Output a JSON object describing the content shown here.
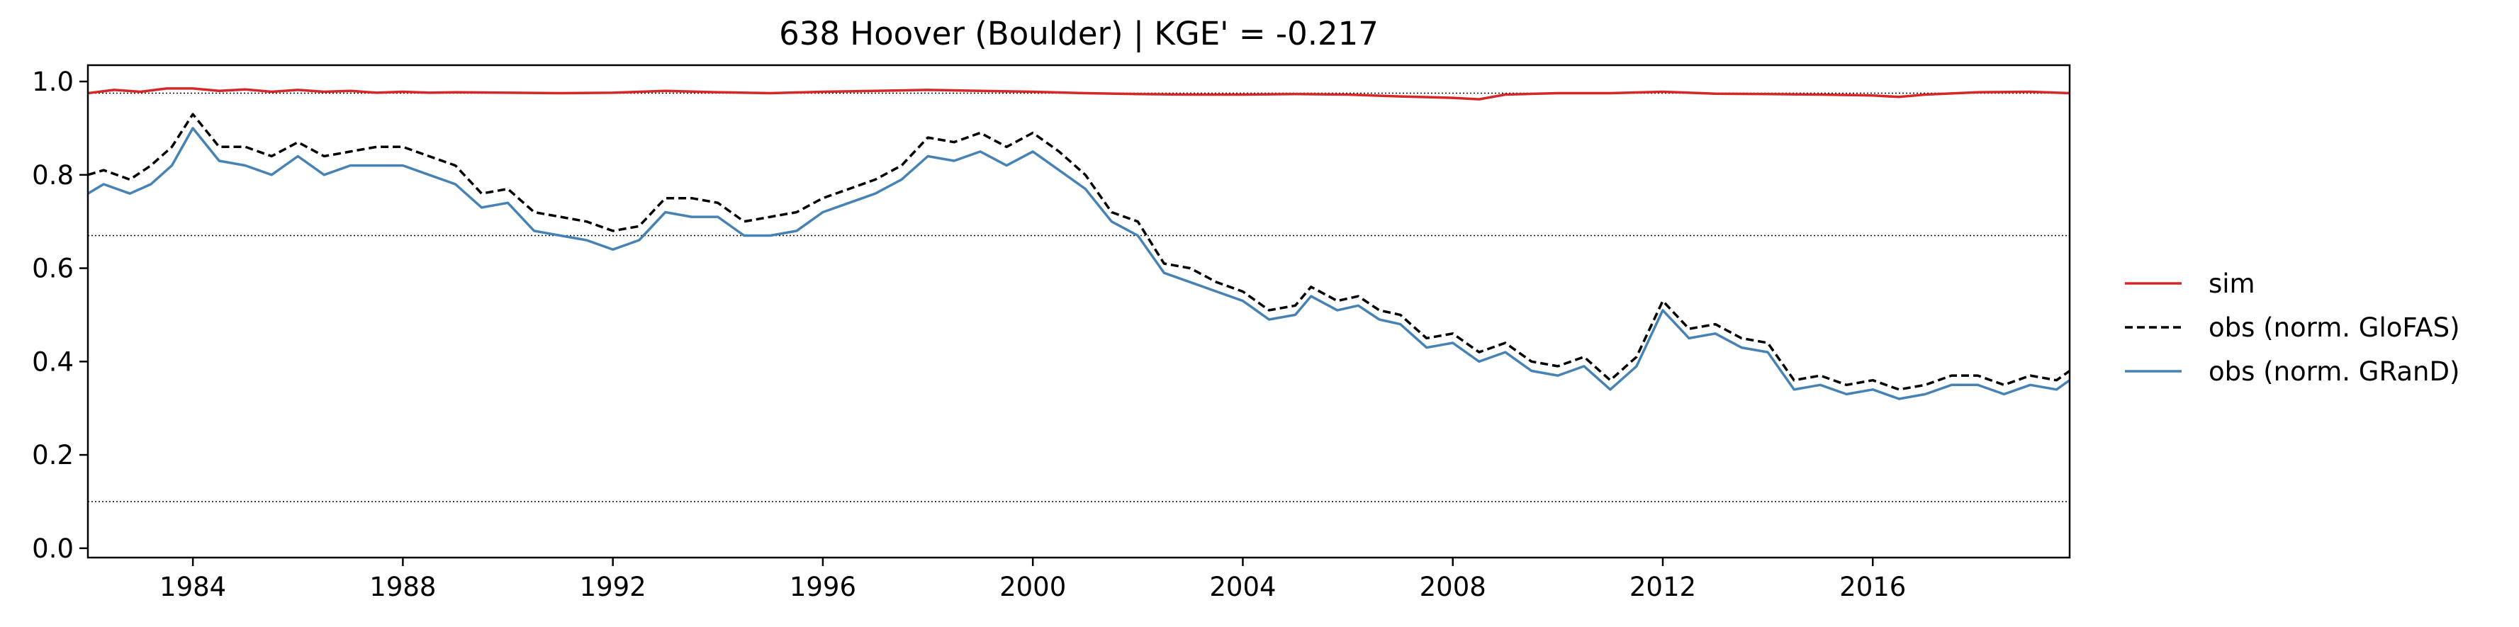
{
  "chart_data": {
    "type": "line",
    "title": "638  Hoover (Boulder) | KGE' = -0.217",
    "xlabel": "",
    "ylabel": "",
    "xlim": [
      1982.0,
      2019.75
    ],
    "ylim": [
      -0.02,
      1.035
    ],
    "x_ticks": [
      1984,
      1988,
      1992,
      1996,
      2000,
      2004,
      2008,
      2012,
      2016
    ],
    "x_tick_labels": [
      "1984",
      "1988",
      "1992",
      "1996",
      "2000",
      "2004",
      "2008",
      "2012",
      "2016"
    ],
    "y_ticks": [
      0.0,
      0.2,
      0.4,
      0.6,
      0.8,
      1.0
    ],
    "y_tick_labels": [
      "0.0",
      "0.2",
      "0.4",
      "0.6",
      "0.8",
      "1.0"
    ],
    "grid": false,
    "legend_placement": "right, outside",
    "reference_lines": [
      {
        "y": 0.975,
        "style": "dotted",
        "color": "#000000"
      },
      {
        "y": 0.67,
        "style": "dotted",
        "color": "#000000"
      },
      {
        "y": 0.1,
        "style": "dotted",
        "color": "#000000"
      }
    ],
    "series": [
      {
        "name": "sim",
        "color": "#d62728",
        "style": "solid",
        "x": [
          1982.0,
          1982.5,
          1983.0,
          1983.5,
          1984.0,
          1984.5,
          1985.0,
          1985.5,
          1986.0,
          1986.5,
          1987.0,
          1987.5,
          1988.0,
          1988.5,
          1989.0,
          1990.0,
          1991.0,
          1992.0,
          1993.0,
          1994.0,
          1995.0,
          1996.0,
          1997.0,
          1998.0,
          1999.0,
          2000.0,
          2001.0,
          2002.0,
          2003.0,
          2004.0,
          2005.0,
          2006.0,
          2007.0,
          2008.0,
          2008.5,
          2009.0,
          2010.0,
          2011.0,
          2012.0,
          2013.0,
          2014.0,
          2015.0,
          2016.0,
          2016.5,
          2017.0,
          2018.0,
          2019.0,
          2019.75
        ],
        "values": [
          0.975,
          0.982,
          0.978,
          0.985,
          0.985,
          0.98,
          0.983,
          0.978,
          0.982,
          0.978,
          0.98,
          0.976,
          0.978,
          0.976,
          0.977,
          0.976,
          0.975,
          0.976,
          0.98,
          0.977,
          0.975,
          0.978,
          0.98,
          0.982,
          0.98,
          0.978,
          0.975,
          0.973,
          0.972,
          0.972,
          0.973,
          0.972,
          0.968,
          0.965,
          0.962,
          0.972,
          0.975,
          0.975,
          0.978,
          0.974,
          0.973,
          0.972,
          0.97,
          0.967,
          0.972,
          0.977,
          0.978,
          0.975
        ]
      },
      {
        "name": "obs (norm. GloFAS)",
        "color": "#000000",
        "style": "dashed",
        "x": [
          1982.0,
          1982.3,
          1982.8,
          1983.2,
          1983.6,
          1984.0,
          1984.5,
          1985.0,
          1985.5,
          1986.0,
          1986.5,
          1987.0,
          1987.5,
          1988.0,
          1988.5,
          1989.0,
          1989.5,
          1990.0,
          1990.5,
          1991.0,
          1991.5,
          1992.0,
          1992.5,
          1993.0,
          1993.5,
          1994.0,
          1994.5,
          1995.0,
          1995.5,
          1996.0,
          1996.5,
          1997.0,
          1997.5,
          1998.0,
          1998.5,
          1999.0,
          1999.5,
          2000.0,
          2000.5,
          2001.0,
          2001.5,
          2002.0,
          2002.5,
          2003.0,
          2003.5,
          2004.0,
          2004.5,
          2005.0,
          2005.3,
          2005.8,
          2006.2,
          2006.6,
          2007.0,
          2007.5,
          2008.0,
          2008.5,
          2009.0,
          2009.5,
          2010.0,
          2010.5,
          2011.0,
          2011.5,
          2012.0,
          2012.5,
          2013.0,
          2013.5,
          2014.0,
          2014.5,
          2015.0,
          2015.5,
          2016.0,
          2016.5,
          2017.0,
          2017.5,
          2018.0,
          2018.5,
          2019.0,
          2019.5,
          2019.75
        ],
        "values": [
          0.8,
          0.81,
          0.79,
          0.82,
          0.86,
          0.93,
          0.86,
          0.86,
          0.84,
          0.87,
          0.84,
          0.85,
          0.86,
          0.86,
          0.84,
          0.82,
          0.76,
          0.77,
          0.72,
          0.71,
          0.7,
          0.68,
          0.69,
          0.75,
          0.75,
          0.74,
          0.7,
          0.71,
          0.72,
          0.75,
          0.77,
          0.79,
          0.82,
          0.88,
          0.87,
          0.89,
          0.86,
          0.89,
          0.85,
          0.8,
          0.72,
          0.7,
          0.61,
          0.6,
          0.57,
          0.55,
          0.51,
          0.52,
          0.56,
          0.53,
          0.54,
          0.51,
          0.5,
          0.45,
          0.46,
          0.42,
          0.44,
          0.4,
          0.39,
          0.41,
          0.36,
          0.41,
          0.53,
          0.47,
          0.48,
          0.45,
          0.44,
          0.36,
          0.37,
          0.35,
          0.36,
          0.34,
          0.35,
          0.37,
          0.37,
          0.35,
          0.37,
          0.36,
          0.38
        ]
      },
      {
        "name": "obs (norm. GRanD)",
        "color": "#4682b4",
        "style": "solid",
        "x": [
          1982.0,
          1982.3,
          1982.8,
          1983.2,
          1983.6,
          1984.0,
          1984.5,
          1985.0,
          1985.5,
          1986.0,
          1986.5,
          1987.0,
          1987.5,
          1988.0,
          1988.5,
          1989.0,
          1989.5,
          1990.0,
          1990.5,
          1991.0,
          1991.5,
          1992.0,
          1992.5,
          1993.0,
          1993.5,
          1994.0,
          1994.5,
          1995.0,
          1995.5,
          1996.0,
          1996.5,
          1997.0,
          1997.5,
          1998.0,
          1998.5,
          1999.0,
          1999.5,
          2000.0,
          2000.5,
          2001.0,
          2001.5,
          2002.0,
          2002.5,
          2003.0,
          2003.5,
          2004.0,
          2004.5,
          2005.0,
          2005.3,
          2005.8,
          2006.2,
          2006.6,
          2007.0,
          2007.5,
          2008.0,
          2008.5,
          2009.0,
          2009.5,
          2010.0,
          2010.5,
          2011.0,
          2011.5,
          2012.0,
          2012.5,
          2013.0,
          2013.5,
          2014.0,
          2014.5,
          2015.0,
          2015.5,
          2016.0,
          2016.5,
          2017.0,
          2017.5,
          2018.0,
          2018.5,
          2019.0,
          2019.5,
          2019.75
        ],
        "values": [
          0.76,
          0.78,
          0.76,
          0.78,
          0.82,
          0.9,
          0.83,
          0.82,
          0.8,
          0.84,
          0.8,
          0.82,
          0.82,
          0.82,
          0.8,
          0.78,
          0.73,
          0.74,
          0.68,
          0.67,
          0.66,
          0.64,
          0.66,
          0.72,
          0.71,
          0.71,
          0.67,
          0.67,
          0.68,
          0.72,
          0.74,
          0.76,
          0.79,
          0.84,
          0.83,
          0.85,
          0.82,
          0.85,
          0.81,
          0.77,
          0.7,
          0.67,
          0.59,
          0.57,
          0.55,
          0.53,
          0.49,
          0.5,
          0.54,
          0.51,
          0.52,
          0.49,
          0.48,
          0.43,
          0.44,
          0.4,
          0.42,
          0.38,
          0.37,
          0.39,
          0.34,
          0.39,
          0.51,
          0.45,
          0.46,
          0.43,
          0.42,
          0.34,
          0.35,
          0.33,
          0.34,
          0.32,
          0.33,
          0.35,
          0.35,
          0.33,
          0.35,
          0.34,
          0.36
        ]
      }
    ]
  }
}
